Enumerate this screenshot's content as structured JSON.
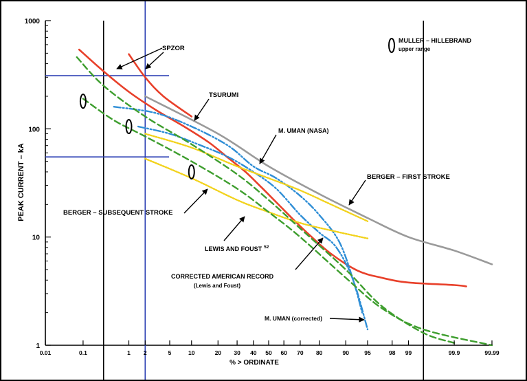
{
  "chart_data": {
    "type": "line",
    "title": "",
    "xlabel": "% > ORDINATE",
    "ylabel": "PEAK CURRENT – kA",
    "y_scale": "log",
    "x_scale": "probability",
    "ylim": [
      1,
      1000
    ],
    "xlim": [
      0.01,
      99.99
    ],
    "x_ticks": [
      0.01,
      0.1,
      1,
      2,
      5,
      10,
      20,
      30,
      40,
      50,
      60,
      70,
      80,
      90,
      95,
      98,
      99,
      99.9,
      99.99
    ],
    "x_tick_labels": [
      "0.01",
      "0.1",
      "1",
      "2",
      "5",
      "10",
      "20",
      "30",
      "40",
      "50",
      "60",
      "70",
      "80",
      "90",
      "95",
      "98",
      "99",
      "99.9",
      "99.99"
    ],
    "y_ticks": [
      1,
      10,
      100,
      1000
    ],
    "y_tick_labels": [
      "1",
      "10",
      "100",
      "1000"
    ],
    "grid": false,
    "series": [
      {
        "name": "SPZOR",
        "color": "#e8402a",
        "dash": "solid",
        "points": [
          [
            0.08,
            540
          ],
          [
            0.3,
            340
          ],
          [
            1,
            220
          ],
          [
            3,
            150
          ],
          [
            8,
            105
          ],
          [
            16,
            75
          ],
          [
            25,
            54
          ],
          [
            35,
            40
          ],
          [
            45,
            29
          ],
          [
            55,
            21
          ],
          [
            65,
            15
          ],
          [
            75,
            10.5
          ],
          [
            85,
            7
          ],
          [
            93,
            4.9
          ],
          [
            97,
            4.2
          ],
          [
            99,
            3.8
          ],
          [
            99.9,
            3.6
          ],
          [
            99.95,
            3.5
          ]
        ]
      },
      {
        "name": "SPZOR",
        "color": "#e8402a",
        "dash": "solid",
        "points": [
          [
            1,
            490
          ],
          [
            2,
            300
          ],
          [
            4,
            200
          ],
          [
            10,
            130
          ]
        ]
      },
      {
        "name": "TSURUMI",
        "color": "#9a9a9a",
        "dash": "solid",
        "points": [
          [
            2,
            200
          ],
          [
            20,
            90
          ],
          [
            50,
            45
          ],
          [
            80,
            25
          ],
          [
            95,
            15
          ],
          [
            99,
            10
          ],
          [
            99.9,
            7.5
          ],
          [
            99.99,
            5.6
          ]
        ]
      },
      {
        "name": "M. UMAN (NASA)",
        "color": "#2f8ed6",
        "dash": "dashdot",
        "points": [
          [
            0.5,
            160
          ],
          [
            3,
            140
          ],
          [
            10,
            105
          ],
          [
            25,
            70
          ],
          [
            40,
            45
          ],
          [
            55,
            35
          ],
          [
            70,
            24
          ],
          [
            80,
            16
          ],
          [
            88,
            9
          ],
          [
            92,
            4
          ],
          [
            94,
            2
          ]
        ]
      },
      {
        "name": "M. UMAN (corrected)",
        "color": "#2f8ed6",
        "dash": "dashdot",
        "points": [
          [
            1.5,
            105
          ],
          [
            5,
            90
          ],
          [
            12,
            72
          ],
          [
            25,
            55
          ],
          [
            40,
            40
          ],
          [
            55,
            28
          ],
          [
            70,
            16
          ],
          [
            80,
            11
          ],
          [
            87,
            8
          ],
          [
            92,
            4
          ],
          [
            95,
            1.4
          ]
        ]
      },
      {
        "name": "BERGER – FIRST STROKE",
        "color": "#f2d21b",
        "dash": "dotted",
        "points": [
          [
            2,
            90
          ],
          [
            10,
            67
          ],
          [
            30,
            45
          ],
          [
            50,
            35
          ],
          [
            70,
            27
          ],
          [
            85,
            20
          ],
          [
            95,
            14
          ]
        ]
      },
      {
        "name": "BERGER – SUBSEQUENT STROKE",
        "color": "#f2d21b",
        "dash": "dotted",
        "points": [
          [
            2,
            53
          ],
          [
            10,
            35
          ],
          [
            30,
            22
          ],
          [
            50,
            17
          ],
          [
            70,
            13.5
          ],
          [
            85,
            11.5
          ],
          [
            95,
            9.7
          ]
        ]
      },
      {
        "name": "LEWIS AND FOUST",
        "color": "#3e9e2e",
        "dash": "dashed",
        "points": [
          [
            0.07,
            460
          ],
          [
            0.3,
            250
          ],
          [
            2,
            130
          ],
          [
            10,
            72
          ],
          [
            30,
            38
          ],
          [
            50,
            22
          ],
          [
            70,
            12
          ],
          [
            90,
            5
          ],
          [
            97,
            2.3
          ],
          [
            99.5,
            1.3
          ],
          [
            99.9,
            1.05
          ]
        ]
      },
      {
        "name": "CORRECTED AMERICAN RECORD",
        "color": "#3e9e2e",
        "dash": "dashed",
        "points": [
          [
            0.1,
            190
          ],
          [
            0.5,
            120
          ],
          [
            2,
            85
          ],
          [
            10,
            50
          ],
          [
            30,
            28
          ],
          [
            50,
            17
          ],
          [
            70,
            10
          ],
          [
            90,
            4.2
          ],
          [
            97,
            2.2
          ],
          [
            99.5,
            1.4
          ],
          [
            99.99,
            1
          ]
        ]
      }
    ],
    "annotations": [
      {
        "text": "SPZOR"
      },
      {
        "text": "TSURUMI"
      },
      {
        "text": "M. UMAN (NASA)"
      },
      {
        "text": "BERGER – FIRST STROKE"
      },
      {
        "text": "BERGER – SUBSEQUENT STROKE"
      },
      {
        "text": "LEWIS AND FOUST",
        "superscript": "52"
      },
      {
        "text": "CORRECTED AMERICAN RECORD",
        "subtext": "(Lewis and Foust)"
      },
      {
        "text": "M. UMAN (corrected)"
      },
      {
        "text": "MULLER – HILLEBRAND",
        "subtext": "upper range"
      }
    ],
    "reference_lines": {
      "vertical_black_x": [
        0.3,
        99.5
      ],
      "vertical_blue_x": [
        2
      ],
      "horizontal_blue_y": [
        310,
        55
      ]
    },
    "range_markers": [
      {
        "x": 0.1,
        "y": 180
      },
      {
        "x": 1,
        "y": 105
      },
      {
        "x": 10,
        "y": 40
      },
      {
        "x": 99.5,
        "y": 500,
        "legend_key": true
      }
    ]
  }
}
